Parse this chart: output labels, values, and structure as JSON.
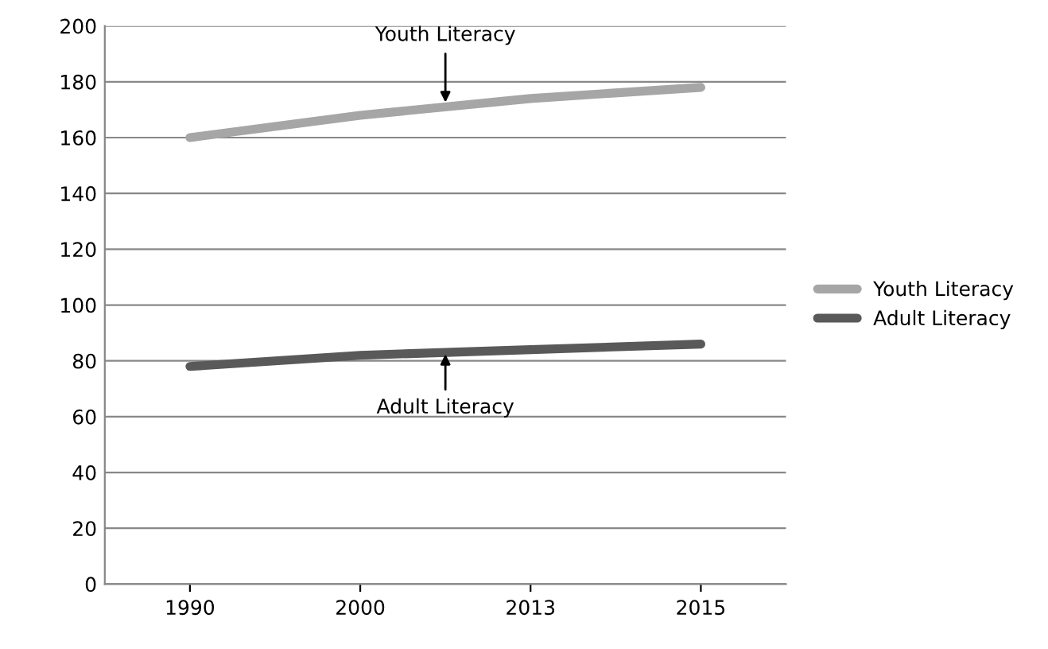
{
  "chart_data": {
    "type": "line",
    "categories": [
      "1990",
      "2000",
      "2013",
      "2015"
    ],
    "series": [
      {
        "name": "Youth Literacy",
        "color": "#a6a6a6",
        "values": [
          160,
          168,
          174,
          178
        ]
      },
      {
        "name": "Adult Literacy",
        "color": "#595959",
        "values": [
          78,
          82,
          84,
          86
        ]
      }
    ],
    "ylim": [
      0,
      200
    ],
    "yticks": [
      0,
      20,
      40,
      60,
      80,
      100,
      120,
      140,
      160,
      180,
      200
    ],
    "grid": "y",
    "legend": "right",
    "annotations": [
      {
        "text": "Youth Literacy",
        "y": 171
      },
      {
        "text": "Adult Literacy",
        "y": 84
      }
    ]
  }
}
